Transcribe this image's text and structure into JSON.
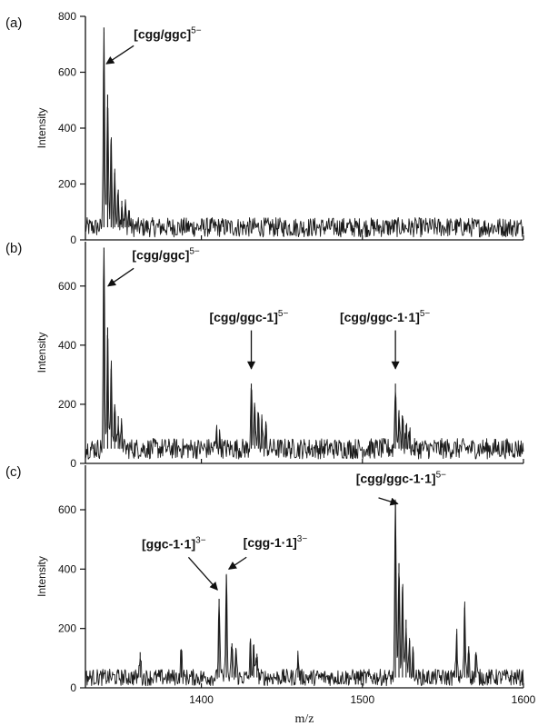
{
  "chart_data": {
    "type": "line",
    "xlabel": "m/z",
    "xlim": [
      1328,
      1600
    ],
    "x_ticks": [
      1400,
      1500,
      1600
    ],
    "colors": {
      "trace": "#1a1a1a",
      "axis": "#111111",
      "background": "#ffffff"
    },
    "panels": [
      {
        "label": "(a)",
        "ylabel": "Intensity",
        "ylim": [
          0,
          800
        ],
        "y_ticks": [
          0,
          200,
          400,
          600,
          800
        ],
        "baseline": 45,
        "noise": 35,
        "peaks": [
          {
            "x": 1339.5,
            "y": 760
          },
          {
            "x": 1341.8,
            "y": 520
          },
          {
            "x": 1344.0,
            "y": 360
          },
          {
            "x": 1346.2,
            "y": 240
          },
          {
            "x": 1348.4,
            "y": 180
          },
          {
            "x": 1350.6,
            "y": 140
          },
          {
            "x": 1352.8,
            "y": 120
          },
          {
            "x": 1355.0,
            "y": 105
          }
        ],
        "annotations": [
          {
            "text": "[cgg/ggc]",
            "sup": "5−",
            "text_x": 1358,
            "text_y": 720,
            "arrow_from": [
              1358,
              695
            ],
            "arrow_to": [
              1341,
              630
            ]
          }
        ]
      },
      {
        "label": "(b)",
        "ylabel": "Intensity",
        "ylim": [
          0,
          750
        ],
        "y_ticks": [
          0,
          200,
          400,
          600
        ],
        "baseline": 50,
        "noise": 35,
        "peaks": [
          {
            "x": 1339.5,
            "y": 730
          },
          {
            "x": 1341.8,
            "y": 460
          },
          {
            "x": 1344.0,
            "y": 320
          },
          {
            "x": 1346.2,
            "y": 200
          },
          {
            "x": 1348.4,
            "y": 160
          },
          {
            "x": 1350.6,
            "y": 130
          },
          {
            "x": 1409.5,
            "y": 110
          },
          {
            "x": 1411.5,
            "y": 90
          },
          {
            "x": 1431.0,
            "y": 270
          },
          {
            "x": 1433.2,
            "y": 190
          },
          {
            "x": 1435.4,
            "y": 170
          },
          {
            "x": 1437.6,
            "y": 150
          },
          {
            "x": 1440.0,
            "y": 120
          },
          {
            "x": 1520.5,
            "y": 270
          },
          {
            "x": 1522.7,
            "y": 180
          },
          {
            "x": 1524.9,
            "y": 160
          },
          {
            "x": 1527.1,
            "y": 130
          },
          {
            "x": 1529.3,
            "y": 110
          }
        ],
        "annotations": [
          {
            "text": "[cgg/ggc]",
            "sup": "5−",
            "text_x": 1357,
            "text_y": 690,
            "arrow_from": [
              1358,
              660
            ],
            "arrow_to": [
              1342,
              600
            ]
          },
          {
            "text": "[cgg/ggc-1]",
            "sup": "5−",
            "text_x": 1405,
            "text_y": 480,
            "arrow_from": [
              1431,
              450
            ],
            "arrow_to": [
              1431,
              320
            ]
          },
          {
            "text": "[cgg/ggc-1·1]",
            "sup": "5−",
            "text_x": 1486,
            "text_y": 480,
            "arrow_from": [
              1520.5,
              450
            ],
            "arrow_to": [
              1520.5,
              320
            ]
          }
        ]
      },
      {
        "label": "(c)",
        "ylabel": "Intensity",
        "ylim": [
          0,
          750
        ],
        "y_ticks": [
          0,
          200,
          400,
          600
        ],
        "baseline": 35,
        "noise": 28,
        "peaks": [
          {
            "x": 1362.0,
            "y": 120
          },
          {
            "x": 1387.5,
            "y": 130
          },
          {
            "x": 1411.0,
            "y": 300
          },
          {
            "x": 1415.5,
            "y": 380
          },
          {
            "x": 1419.0,
            "y": 150
          },
          {
            "x": 1421.5,
            "y": 130
          },
          {
            "x": 1430.5,
            "y": 150
          },
          {
            "x": 1432.5,
            "y": 130
          },
          {
            "x": 1434.5,
            "y": 115
          },
          {
            "x": 1460.0,
            "y": 110
          },
          {
            "x": 1520.5,
            "y": 620
          },
          {
            "x": 1522.7,
            "y": 420
          },
          {
            "x": 1524.9,
            "y": 340
          },
          {
            "x": 1527.1,
            "y": 230
          },
          {
            "x": 1529.3,
            "y": 160
          },
          {
            "x": 1531.5,
            "y": 120
          },
          {
            "x": 1558.5,
            "y": 180
          },
          {
            "x": 1563.5,
            "y": 270
          },
          {
            "x": 1566.0,
            "y": 140
          },
          {
            "x": 1570.5,
            "y": 120
          }
        ],
        "annotations": [
          {
            "text": "[ggc-1·1]",
            "sup": "3−",
            "text_x": 1363,
            "text_y": 470,
            "arrow_from": [
              1392,
              440
            ],
            "arrow_to": [
              1410,
              330
            ]
          },
          {
            "text": "[cgg-1·1]",
            "sup": "3−",
            "text_x": 1426,
            "text_y": 475,
            "arrow_from": [
              1428,
              440
            ],
            "arrow_to": [
              1417,
              400
            ]
          },
          {
            "text": "[cgg/ggc-1·1]",
            "sup": "5−",
            "text_x": 1496,
            "text_y": 690,
            "arrow_from": [
              1510,
              640
            ],
            "arrow_to": [
              1522,
              620
            ]
          }
        ]
      }
    ]
  }
}
